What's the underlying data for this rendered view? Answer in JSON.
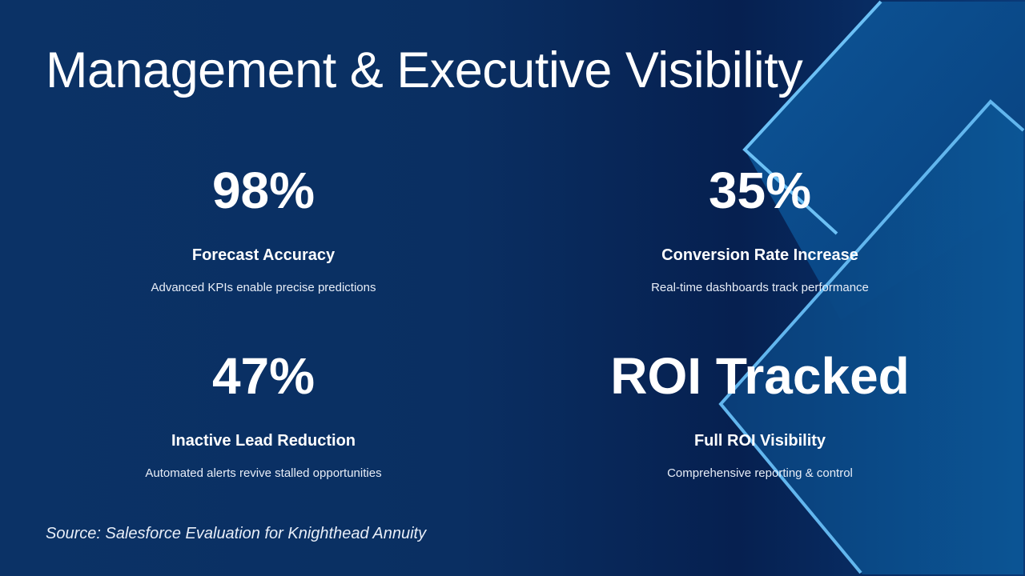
{
  "title": "Management & Executive Visibility",
  "stats": [
    {
      "value": "98%",
      "label": "Forecast Accuracy",
      "description": "Advanced KPIs enable precise predictions"
    },
    {
      "value": "35%",
      "label": "Conversion Rate Increase",
      "description": "Real-time dashboards track performance"
    },
    {
      "value": "47%",
      "label": "Inactive Lead Reduction",
      "description": "Automated alerts revive stalled opportunities"
    },
    {
      "value": "ROI Tracked",
      "label": "Full ROI Visibility",
      "description": "Comprehensive reporting & control"
    }
  ],
  "source": "Source: Salesforce Evaluation for Knighthead Annuity",
  "colors": {
    "background": "#0a3060",
    "accent_line": "#5fb4f0",
    "shape_fill": "#0b4f8f"
  }
}
